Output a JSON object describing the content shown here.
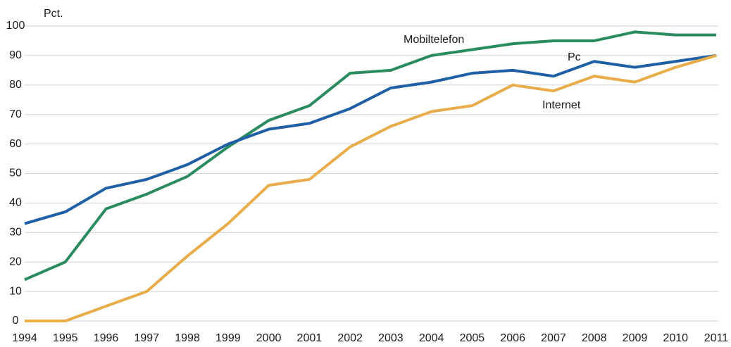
{
  "chart_data": {
    "type": "line",
    "y_label": "Pct.",
    "x": [
      1994,
      1995,
      1996,
      1997,
      1998,
      1999,
      2000,
      2001,
      2002,
      2003,
      2004,
      2005,
      2006,
      2007,
      2008,
      2009,
      2010,
      2011
    ],
    "xlim": [
      1994,
      2011
    ],
    "xticks": [
      1994,
      1995,
      1996,
      1997,
      1998,
      1999,
      2000,
      2001,
      2002,
      2003,
      2004,
      2005,
      2006,
      2007,
      2008,
      2009,
      2010,
      2011
    ],
    "ylim": [
      0,
      100
    ],
    "yticks": [
      0,
      10,
      20,
      30,
      40,
      50,
      60,
      70,
      80,
      90,
      100
    ],
    "grid": true,
    "series": [
      {
        "name": "Mobiltelefon",
        "color": "#2a8c5e",
        "values": [
          14,
          20,
          38,
          43,
          49,
          59,
          68,
          73,
          84,
          85,
          90,
          92,
          94,
          95,
          95,
          98,
          97,
          97
        ]
      },
      {
        "name": "Pc",
        "color": "#1f5fa6",
        "values": [
          33,
          37,
          45,
          48,
          53,
          60,
          65,
          67,
          72,
          79,
          81,
          84,
          85,
          83,
          88,
          86,
          88,
          90
        ]
      },
      {
        "name": "Internet",
        "color": "#e8ad4a",
        "values": [
          0,
          0,
          5,
          10,
          22,
          33,
          46,
          48,
          59,
          66,
          71,
          73,
          80,
          78,
          83,
          81,
          86,
          90
        ]
      }
    ]
  }
}
